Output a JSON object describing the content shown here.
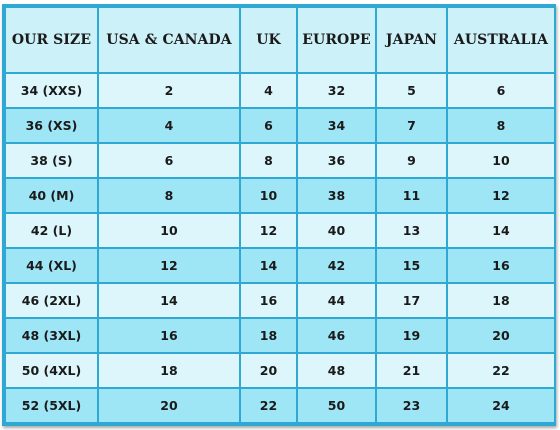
{
  "size_chart": {
    "headers": [
      "OUR SIZE",
      "USA & CANADA",
      "UK",
      "EUROPE",
      "JAPAN",
      "AUSTRALIA"
    ],
    "rows": [
      [
        "34 (XXS)",
        "2",
        "4",
        "32",
        "5",
        "6"
      ],
      [
        "36 (XS)",
        "4",
        "6",
        "34",
        "7",
        "8"
      ],
      [
        "38 (S)",
        "6",
        "8",
        "36",
        "9",
        "10"
      ],
      [
        "40 (M)",
        "8",
        "10",
        "38",
        "11",
        "12"
      ],
      [
        "42 (L)",
        "10",
        "12",
        "40",
        "13",
        "14"
      ],
      [
        "44 (XL)",
        "12",
        "14",
        "42",
        "15",
        "16"
      ],
      [
        "46 (2XL)",
        "14",
        "16",
        "44",
        "17",
        "18"
      ],
      [
        "48 (3XL)",
        "16",
        "18",
        "46",
        "19",
        "20"
      ],
      [
        "50 (4XL)",
        "18",
        "20",
        "48",
        "21",
        "22"
      ],
      [
        "52 (5XL)",
        "20",
        "22",
        "50",
        "23",
        "24"
      ]
    ]
  },
  "colors": {
    "border": "#2fa8d4",
    "header_bg": "#cdf1f8",
    "row_light": "#dcf6fc",
    "row_dark": "#9ee6f6"
  }
}
